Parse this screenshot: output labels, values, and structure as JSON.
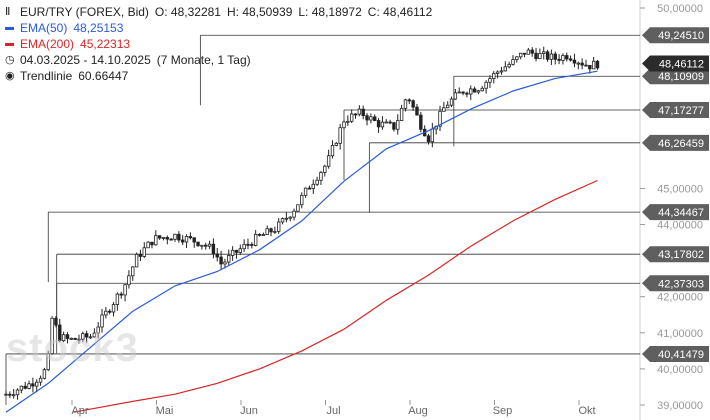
{
  "legend": {
    "instrument": "EUR/TRY (FOREX, Bid)",
    "open": "O: 48,32281",
    "high": "H: 48,50939",
    "low": "L: 48,18972",
    "close": "C: 48,46112",
    "ema50_name": "EMA(50)",
    "ema50_value": "48,25153",
    "ema200_name": "EMA(200)",
    "ema200_value": "45,22313",
    "range": "04.03.2025 - 14.10.2025",
    "period": "(7 Monate, 1 Tag)",
    "trend_name": "Trendlinie",
    "trend_value": "60.66447"
  },
  "watermark": "stock3",
  "colors": {
    "ema50": "#2a5bd7",
    "ema200": "#d62728",
    "candles": "#222222",
    "levels": "#333333",
    "label_bg": "#5f5f5f",
    "current_bg": "#2b2b2b"
  },
  "chart_data": {
    "type": "candlestick",
    "ylim": [
      39,
      50
    ],
    "y_ticks": [
      {
        "v": 50,
        "label": "50,00000"
      },
      {
        "v": 45,
        "label": "45,00000"
      },
      {
        "v": 44,
        "label": "44,00000"
      },
      {
        "v": 42,
        "label": "42,00000"
      },
      {
        "v": 41,
        "label": "41,00000"
      },
      {
        "v": 40,
        "label": "40,00000"
      },
      {
        "v": 39,
        "label": "39,00000"
      }
    ],
    "x_ticks": [
      "Apr",
      "Mai",
      "Jun",
      "Jul",
      "Aug",
      "Sep",
      "Okt"
    ],
    "levels": [
      {
        "v": 49.2451,
        "label": "49,24510",
        "start": 2.3
      },
      {
        "v": 48.10909,
        "label": "48,10909",
        "start": 5.3
      },
      {
        "v": 47.17277,
        "label": "47,17277",
        "start": 4.0
      },
      {
        "v": 46.26459,
        "label": "46,26459",
        "start": 4.3
      },
      {
        "v": 44.34467,
        "label": "44,34467",
        "start": 0.5
      },
      {
        "v": 43.17802,
        "label": "43,17802",
        "start": 0.6
      },
      {
        "v": 42.37303,
        "label": "42,37303",
        "start": 0.6
      },
      {
        "v": 40.41479,
        "label": "40,41479",
        "start": 0.0
      }
    ],
    "current": {
      "v": 48.46112,
      "label": "48,46112"
    },
    "path": [
      [
        0.0,
        39.3
      ],
      [
        0.3,
        39.6
      ],
      [
        0.45,
        39.9
      ],
      [
        0.5,
        40.3
      ],
      [
        0.55,
        41.5
      ],
      [
        0.62,
        40.9
      ],
      [
        0.75,
        40.8
      ],
      [
        1.0,
        40.9
      ],
      [
        1.2,
        41.6
      ],
      [
        1.4,
        42.3
      ],
      [
        1.55,
        43.1
      ],
      [
        1.75,
        43.6
      ],
      [
        2.0,
        43.7
      ],
      [
        2.3,
        43.5
      ],
      [
        2.45,
        43.3
      ],
      [
        2.55,
        42.9
      ],
      [
        2.7,
        43.2
      ],
      [
        2.95,
        43.6
      ],
      [
        3.2,
        43.9
      ],
      [
        3.4,
        44.4
      ],
      [
        3.6,
        45.1
      ],
      [
        3.8,
        45.7
      ],
      [
        4.0,
        46.9
      ],
      [
        4.2,
        47.1
      ],
      [
        4.4,
        46.8
      ],
      [
        4.6,
        46.7
      ],
      [
        4.75,
        47.6
      ],
      [
        4.9,
        46.8
      ],
      [
        5.0,
        46.4
      ],
      [
        5.2,
        47.3
      ],
      [
        5.4,
        47.7
      ],
      [
        5.6,
        47.8
      ],
      [
        5.85,
        48.3
      ],
      [
        6.0,
        48.5
      ],
      [
        6.15,
        48.8
      ],
      [
        6.3,
        48.7
      ],
      [
        6.5,
        48.6
      ],
      [
        6.65,
        48.7
      ],
      [
        6.8,
        48.5
      ],
      [
        6.9,
        48.4
      ],
      [
        7.0,
        48.46
      ]
    ],
    "ema50": [
      [
        0.0,
        38.8
      ],
      [
        0.5,
        39.6
      ],
      [
        1.0,
        40.6
      ],
      [
        1.5,
        41.6
      ],
      [
        2.0,
        42.3
      ],
      [
        2.5,
        42.7
      ],
      [
        3.0,
        43.3
      ],
      [
        3.5,
        44.1
      ],
      [
        4.0,
        45.2
      ],
      [
        4.5,
        46.1
      ],
      [
        5.0,
        46.6
      ],
      [
        5.5,
        47.2
      ],
      [
        6.0,
        47.7
      ],
      [
        6.5,
        48.05
      ],
      [
        7.0,
        48.25
      ]
    ],
    "ema200": [
      [
        0.8,
        38.8
      ],
      [
        1.5,
        39.1
      ],
      [
        2.0,
        39.3
      ],
      [
        2.5,
        39.6
      ],
      [
        3.0,
        40.0
      ],
      [
        3.5,
        40.5
      ],
      [
        4.0,
        41.1
      ],
      [
        4.5,
        41.9
      ],
      [
        5.0,
        42.6
      ],
      [
        5.5,
        43.4
      ],
      [
        6.0,
        44.1
      ],
      [
        6.5,
        44.7
      ],
      [
        7.0,
        45.22
      ]
    ]
  }
}
